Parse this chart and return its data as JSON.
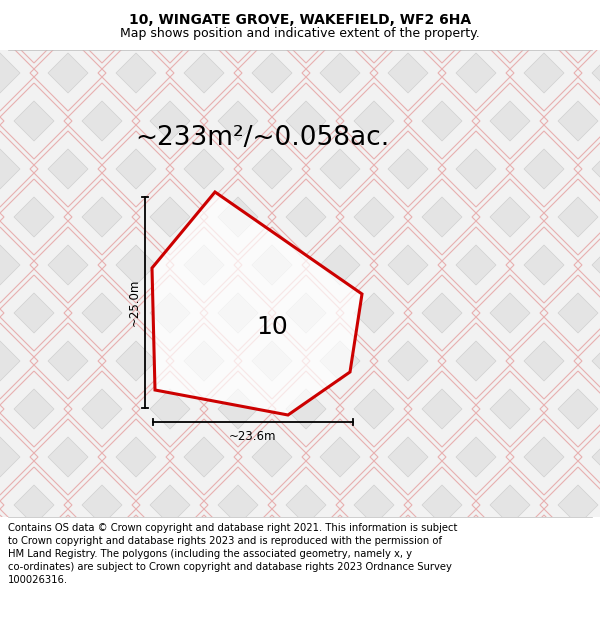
{
  "title": "10, WINGATE GROVE, WAKEFIELD, WF2 6HA",
  "subtitle": "Map shows position and indicative extent of the property.",
  "area_label": "~233m²/~0.058ac.",
  "property_number": "10",
  "width_label": "~23.6m",
  "height_label": "~25.0m",
  "footer_lines": [
    "Contains OS data © Crown copyright and database right 2021. This information is subject",
    "to Crown copyright and database rights 2023 and is reproduced with the permission of",
    "HM Land Registry. The polygons (including the associated geometry, namely x, y",
    "co-ordinates) are subject to Crown copyright and database rights 2023 Ordnance Survey",
    "100026316."
  ],
  "bg_color": "#f2f2f2",
  "plot_color": "#cc0000",
  "tile_fill": "#e4e4e4",
  "tile_edge": "#d0d0d0",
  "road_edge": "#e8b0b0",
  "title_fontsize": 10,
  "subtitle_fontsize": 9,
  "area_fontsize": 19,
  "number_fontsize": 18,
  "footer_fontsize": 7.2,
  "measure_fontsize": 8.5
}
